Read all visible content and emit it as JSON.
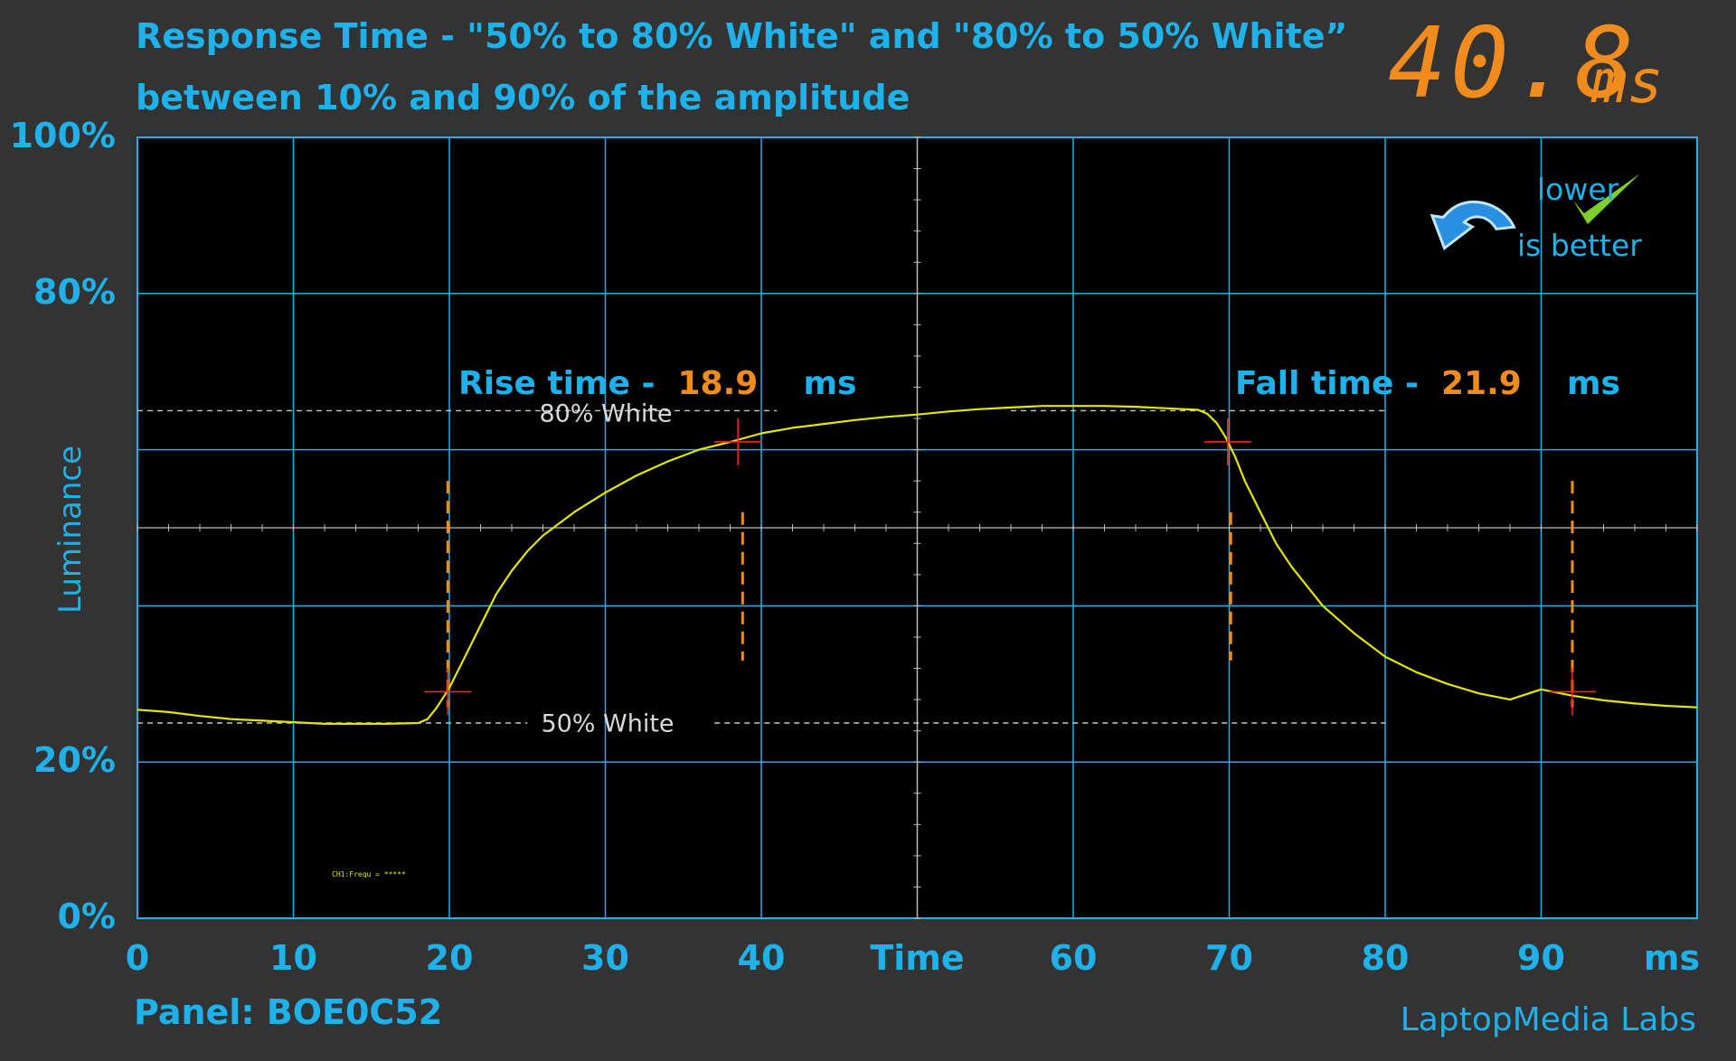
{
  "header": {
    "title_line1": "Response Time - \"50% to 80% White\" and \"80% to 50% White”",
    "title_line2": "between 10% and 90% of the amplitude",
    "total_value": "40.8",
    "total_unit": "ms"
  },
  "badge": {
    "line1": "lower",
    "line2": "is better"
  },
  "annotations": {
    "rise_label": "Rise time -",
    "rise_value": "18.9",
    "rise_unit": "ms",
    "fall_label": "Fall time -",
    "fall_value": "21.9",
    "fall_unit": "ms",
    "ref_high": "80% White",
    "ref_low": "50% White",
    "channel_readout": "CH1:Frequ = *****"
  },
  "footer": {
    "panel": "Panel: BOE0C52",
    "brand": "LaptopMedia Labs"
  },
  "colors": {
    "background": "#333333",
    "plot_bg": "#000000",
    "grid": "#1fb1ea",
    "text_accent": "#1fb1ea",
    "highlight": "#f08c1e",
    "trace": "#e6e600",
    "marker": "#ff2020"
  },
  "chart_data": {
    "type": "line",
    "ylabel": "Luminance",
    "xlabel": "Time",
    "x_unit_label": "ms",
    "xlim": [
      0,
      100
    ],
    "ylim": [
      0,
      100
    ],
    "x_ticks": [
      0,
      10,
      20,
      30,
      40,
      60,
      70,
      80,
      90
    ],
    "y_ticks": [
      {
        "value": 0,
        "label": "0%"
      },
      {
        "value": 20,
        "label": "20%"
      },
      {
        "value": 80,
        "label": "80%"
      },
      {
        "value": 100,
        "label": "100%"
      }
    ],
    "grid_x_step": 10,
    "grid_y_values": [
      20,
      40,
      60,
      80
    ],
    "reference_levels": {
      "high": 65.0,
      "low": 25.0
    },
    "rise": {
      "start_ms": 19.9,
      "end_ms": 38.8,
      "markers": [
        {
          "x": 19.9,
          "y": 29.0
        },
        {
          "x": 38.5,
          "y": 61.0
        }
      ]
    },
    "fall": {
      "start_ms": 70.1,
      "end_ms": 92.0,
      "markers": [
        {
          "x": 69.9,
          "y": 61.0
        },
        {
          "x": 92.0,
          "y": 29.0
        }
      ]
    },
    "series": [
      {
        "x": [
          0,
          2,
          4,
          6,
          8,
          10,
          12,
          14,
          16,
          18,
          18.6,
          19.2,
          20,
          21,
          22,
          23,
          24,
          25,
          26,
          28,
          30,
          32,
          34,
          36,
          38,
          40,
          42,
          44,
          46,
          48,
          50,
          52,
          54,
          56,
          58,
          60,
          62,
          64,
          66,
          68,
          68.6,
          69.2,
          69.8,
          70.4,
          71,
          72,
          73,
          74,
          75,
          76,
          78,
          80,
          82,
          84,
          86,
          88,
          90,
          92,
          94,
          96,
          98,
          100
        ],
        "y": [
          26.7,
          26.4,
          25.9,
          25.5,
          25.3,
          25.1,
          24.9,
          24.9,
          24.9,
          25.0,
          25.5,
          27.0,
          29.5,
          33.5,
          37.5,
          41.5,
          44.5,
          47.0,
          49.0,
          52.0,
          54.5,
          56.7,
          58.5,
          60.0,
          61.0,
          62.1,
          62.8,
          63.3,
          63.8,
          64.2,
          64.5,
          64.9,
          65.2,
          65.4,
          65.6,
          65.6,
          65.6,
          65.5,
          65.3,
          65.1,
          64.6,
          63.4,
          61.5,
          59.0,
          56.0,
          52.0,
          48.0,
          45.0,
          42.5,
          40.0,
          36.5,
          33.5,
          31.5,
          30.0,
          28.8,
          28.0,
          29.3,
          28.5,
          27.9,
          27.5,
          27.2,
          27.0
        ]
      }
    ]
  }
}
